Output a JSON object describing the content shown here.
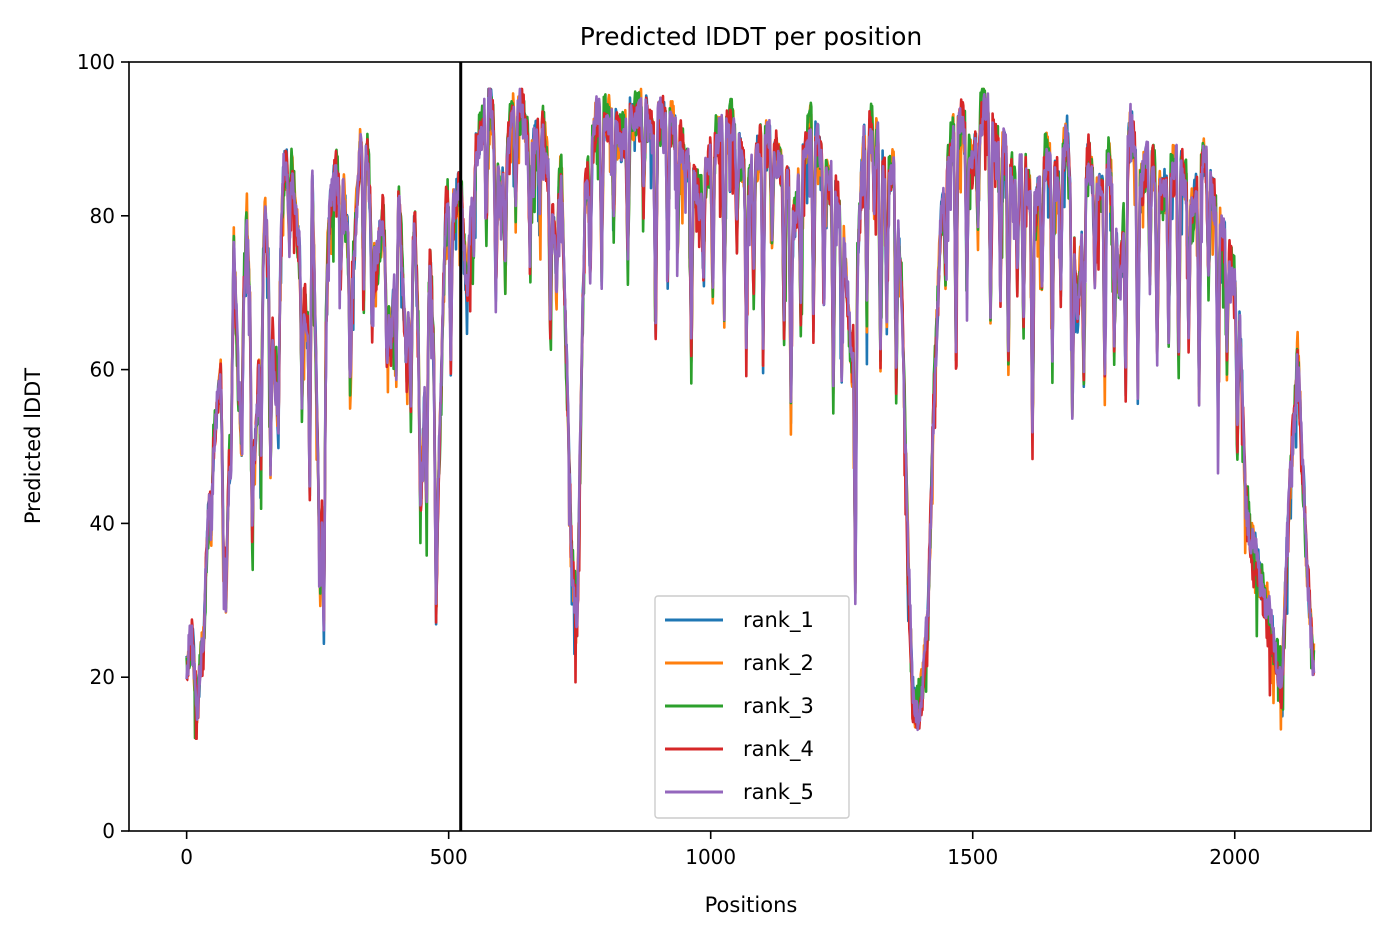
{
  "chart_data": {
    "type": "line",
    "title": "Predicted lDDT per position",
    "xlabel": "Positions",
    "ylabel": "Predicted lDDT",
    "xlim": [
      -110,
      2260
    ],
    "ylim": [
      0,
      100
    ],
    "xticks": [
      0,
      500,
      1000,
      1500,
      2000
    ],
    "yticks": [
      0,
      20,
      40,
      60,
      80,
      100
    ],
    "grid": false,
    "legend_position": "lower-center",
    "vertical_line": {
      "x": 523,
      "color": "#000000"
    },
    "series": [
      {
        "name": "rank_1",
        "color": "#1f77b4"
      },
      {
        "name": "rank_2",
        "color": "#ff7f0e"
      },
      {
        "name": "rank_3",
        "color": "#2ca02c"
      },
      {
        "name": "rank_4",
        "color": "#d62728"
      },
      {
        "name": "rank_5",
        "color": "#9467bd"
      }
    ],
    "profile": {
      "x": [
        0,
        10,
        20,
        30,
        45,
        55,
        65,
        75,
        90,
        100,
        115,
        130,
        150,
        170,
        185,
        200,
        215,
        230,
        240,
        255,
        270,
        285,
        300,
        315,
        330,
        345,
        360,
        375,
        390,
        405,
        420,
        435,
        450,
        465,
        480,
        495,
        510,
        523,
        535,
        550,
        565,
        580,
        600,
        620,
        640,
        660,
        680,
        700,
        715,
        725,
        735,
        745,
        760,
        780,
        800,
        830,
        860,
        890,
        920,
        950,
        980,
        1010,
        1040,
        1070,
        1100,
        1130,
        1160,
        1190,
        1220,
        1250,
        1270,
        1290,
        1310,
        1330,
        1350,
        1365,
        1375,
        1385,
        1395,
        1405,
        1415,
        1425,
        1440,
        1460,
        1480,
        1500,
        1520,
        1540,
        1560,
        1580,
        1600,
        1620,
        1640,
        1660,
        1680,
        1700,
        1720,
        1740,
        1760,
        1780,
        1800,
        1820,
        1840,
        1860,
        1880,
        1900,
        1920,
        1940,
        1960,
        1980,
        2000,
        2010,
        2020,
        2030,
        2045,
        2060,
        2075,
        2090,
        2105,
        2120,
        2135,
        2150
      ],
      "y": [
        21,
        25,
        18,
        24,
        45,
        53,
        60,
        30,
        76,
        55,
        80,
        48,
        80,
        58,
        85,
        87,
        75,
        66,
        84,
        32,
        78,
        86,
        82,
        70,
        88,
        88,
        72,
        80,
        62,
        84,
        60,
        80,
        48,
        75,
        44,
        82,
        80,
        84,
        70,
        88,
        92,
        95,
        82,
        93,
        94,
        88,
        92,
        78,
        86,
        60,
        35,
        28,
        82,
        92,
        93,
        90,
        94,
        91,
        93,
        88,
        82,
        90,
        92,
        84,
        90,
        88,
        80,
        92,
        86,
        80,
        60,
        88,
        92,
        85,
        86,
        70,
        40,
        17,
        16,
        19,
        28,
        55,
        80,
        90,
        92,
        86,
        95,
        90,
        88,
        84,
        86,
        80,
        88,
        84,
        90,
        68,
        88,
        82,
        88,
        70,
        92,
        84,
        88,
        82,
        86,
        86,
        80,
        88,
        82,
        76,
        72,
        65,
        45,
        38,
        34,
        30,
        24,
        20,
        45,
        62,
        38,
        22
      ]
    },
    "spike_dips": [
      [
        18,
        3
      ],
      [
        33,
        4
      ],
      [
        47,
        7
      ],
      [
        70,
        9
      ],
      [
        85,
        12
      ],
      [
        105,
        14
      ],
      [
        125,
        20
      ],
      [
        142,
        18
      ],
      [
        160,
        22
      ],
      [
        175,
        14
      ],
      [
        196,
        9
      ],
      [
        220,
        16
      ],
      [
        235,
        30
      ],
      [
        262,
        26
      ],
      [
        294,
        11
      ],
      [
        312,
        15
      ],
      [
        338,
        18
      ],
      [
        354,
        12
      ],
      [
        382,
        9
      ],
      [
        400,
        17
      ],
      [
        428,
        17
      ],
      [
        446,
        14
      ],
      [
        458,
        21
      ],
      [
        476,
        24
      ],
      [
        504,
        19
      ],
      [
        548,
        10
      ],
      [
        572,
        15
      ],
      [
        590,
        19
      ],
      [
        608,
        14
      ],
      [
        628,
        12
      ],
      [
        655,
        15
      ],
      [
        674,
        9
      ],
      [
        694,
        17
      ],
      [
        706,
        11
      ],
      [
        770,
        13
      ],
      [
        792,
        20
      ],
      [
        815,
        12
      ],
      [
        842,
        18
      ],
      [
        872,
        11
      ],
      [
        895,
        26
      ],
      [
        918,
        20
      ],
      [
        937,
        14
      ],
      [
        963,
        24
      ],
      [
        986,
        10
      ],
      [
        1004,
        18
      ],
      [
        1026,
        24
      ],
      [
        1050,
        12
      ],
      [
        1068,
        20
      ],
      [
        1082,
        16
      ],
      [
        1100,
        28
      ],
      [
        1117,
        12
      ],
      [
        1140,
        21
      ],
      [
        1153,
        27
      ],
      [
        1172,
        18
      ],
      [
        1196,
        24
      ],
      [
        1216,
        16
      ],
      [
        1234,
        27
      ],
      [
        1250,
        19
      ],
      [
        1276,
        36
      ],
      [
        1298,
        22
      ],
      [
        1312,
        11
      ],
      [
        1324,
        26
      ],
      [
        1336,
        18
      ],
      [
        1354,
        24
      ],
      [
        1448,
        12
      ],
      [
        1468,
        28
      ],
      [
        1489,
        17
      ],
      [
        1510,
        12
      ],
      [
        1534,
        25
      ],
      [
        1553,
        18
      ],
      [
        1568,
        26
      ],
      [
        1585,
        13
      ],
      [
        1597,
        20
      ],
      [
        1614,
        30
      ],
      [
        1632,
        14
      ],
      [
        1652,
        24
      ],
      [
        1668,
        16
      ],
      [
        1690,
        25
      ],
      [
        1712,
        22
      ],
      [
        1733,
        12
      ],
      [
        1752,
        27
      ],
      [
        1770,
        16
      ],
      [
        1792,
        24
      ],
      [
        1815,
        28
      ],
      [
        1838,
        16
      ],
      [
        1852,
        22
      ],
      [
        1874,
        20
      ],
      [
        1893,
        26
      ],
      [
        1912,
        17
      ],
      [
        1932,
        28
      ],
      [
        1950,
        14
      ],
      [
        1968,
        24
      ],
      [
        1985,
        15
      ],
      [
        2005,
        18
      ]
    ]
  },
  "legend": {
    "labels": [
      "rank_1",
      "rank_2",
      "rank_3",
      "rank_4",
      "rank_5"
    ]
  }
}
